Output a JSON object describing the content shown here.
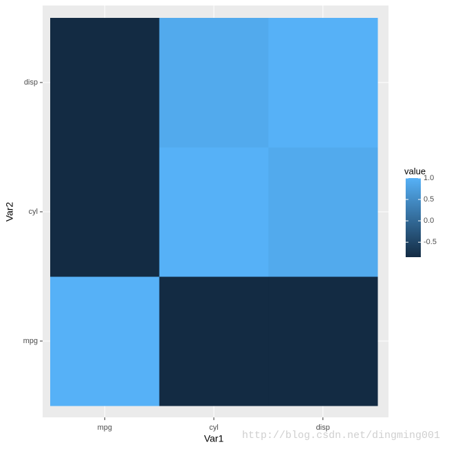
{
  "chart_data": {
    "type": "heatmap",
    "x_label": "Var1",
    "y_label": "Var2",
    "x": [
      "mpg",
      "cyl",
      "disp"
    ],
    "y": [
      "mpg",
      "cyl",
      "disp"
    ],
    "values": [
      [
        1,
        -0.85,
        -0.85
      ],
      [
        -0.85,
        1,
        0.9
      ],
      [
        -0.85,
        0.9,
        1
      ]
    ],
    "colors": [
      "#132B43",
      "#56B1F7"
    ],
    "legend_title": "value",
    "legend_ticks": [
      -0.5,
      {
        "value": 0,
        "label": "0.0"
      },
      0.5,
      {
        "value": 1,
        "label": "1.0"
      }
    ],
    "grid": true,
    "watermark": "http://blog.csdn.net/dingming001"
  }
}
